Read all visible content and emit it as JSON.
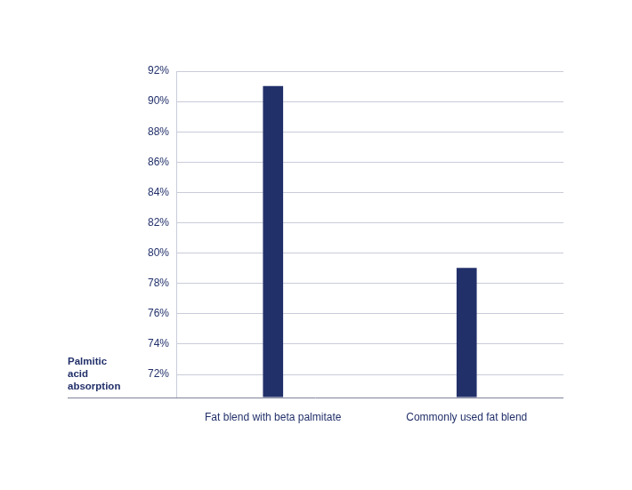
{
  "chart_data": {
    "type": "bar",
    "y_label": "Palmitic acid absorption",
    "categories": [
      "Fat blend with beta palmitate",
      "Commonly used fat blend"
    ],
    "values": [
      91,
      79
    ],
    "color": "#22306a",
    "ylim": [
      70.5,
      92
    ],
    "yticks": [
      {
        "value": 72,
        "label": "72%"
      },
      {
        "value": 74,
        "label": "74%"
      },
      {
        "value": 76,
        "label": "76%"
      },
      {
        "value": 78,
        "label": "78%"
      },
      {
        "value": 80,
        "label": "80%"
      },
      {
        "value": 82,
        "label": "82%"
      },
      {
        "value": 84,
        "label": "84%"
      },
      {
        "value": 86,
        "label": "86%"
      },
      {
        "value": 88,
        "label": "88%"
      },
      {
        "value": 90,
        "label": "90%"
      },
      {
        "value": 92,
        "label": "92%"
      }
    ],
    "grid": true
  }
}
